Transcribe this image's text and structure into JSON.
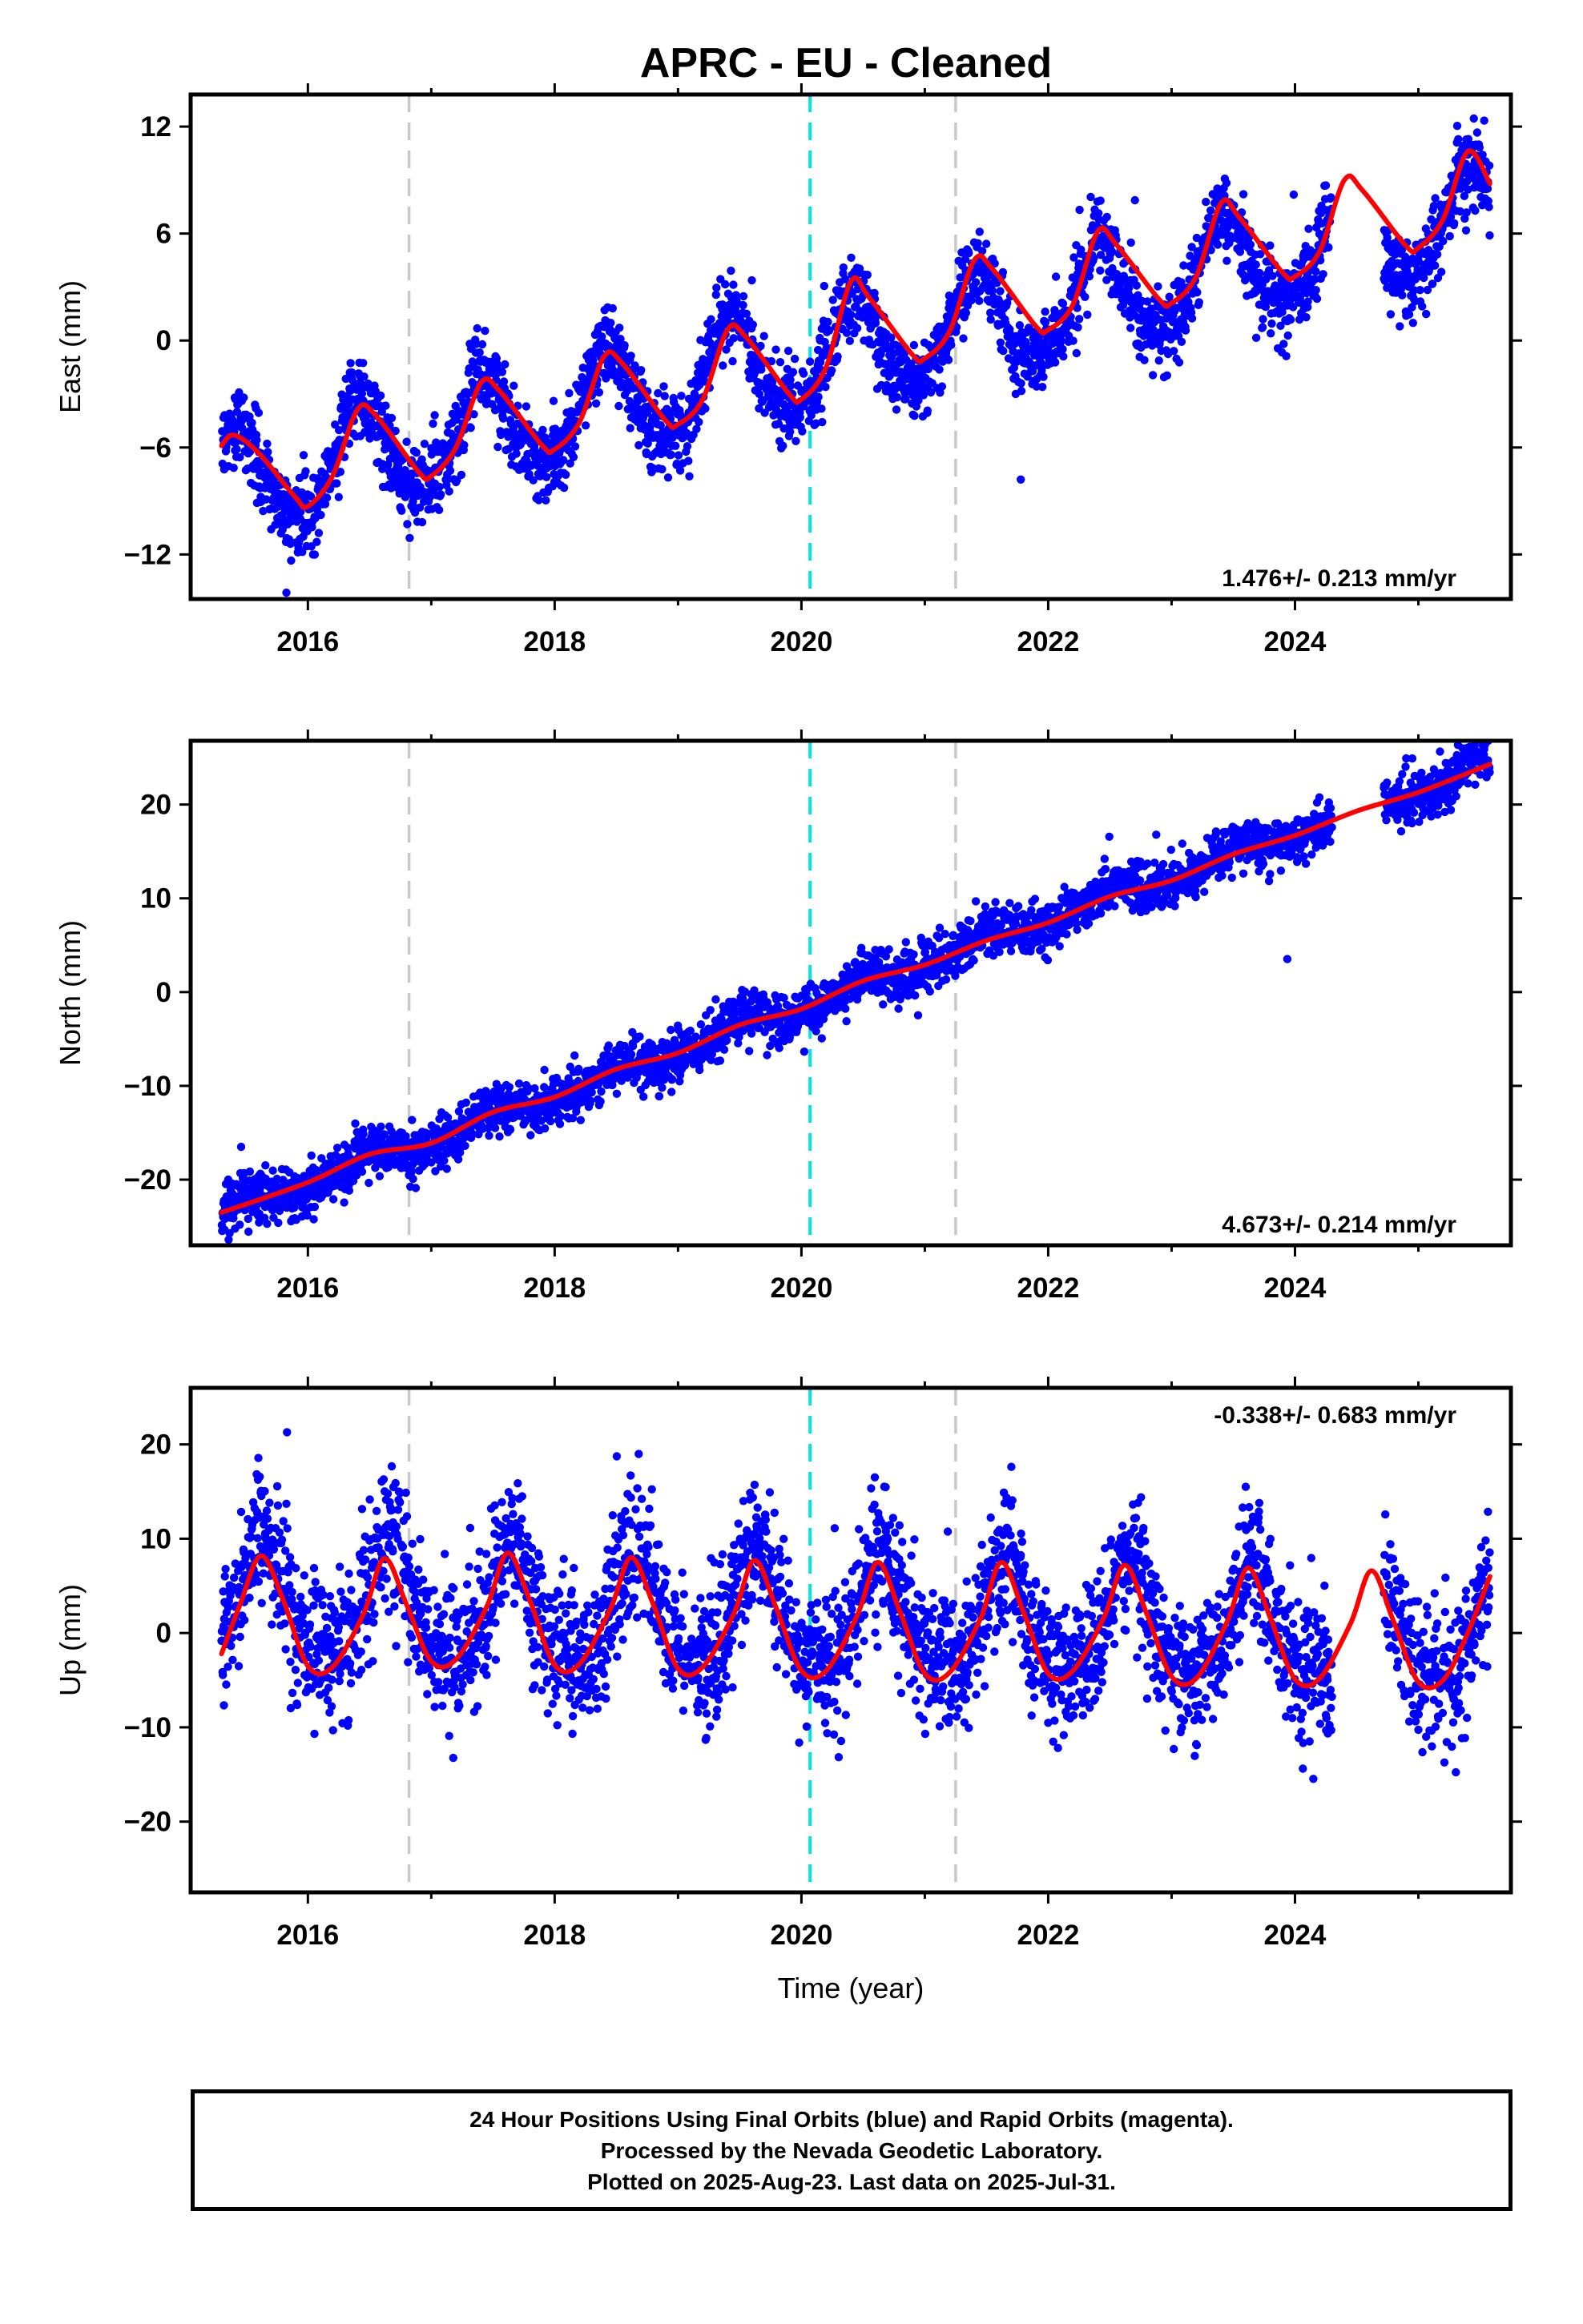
{
  "title": "APRC  - EU - Cleaned",
  "footer": {
    "line1": "24 Hour Positions Using Final Orbits (blue) and Rapid Orbits (magenta).",
    "line2": "Processed by the Nevada Geodetic Laboratory.",
    "line3": "Plotted on 2025-Aug-23. Last data on 2025-Jul-31."
  },
  "colors": {
    "data": "#0000ff",
    "model": "#ff0000",
    "equipment_change": "#c8c8c8",
    "earthquake": "#00e5e5"
  },
  "chart_data": [
    {
      "type": "scatter",
      "component": "east",
      "ylabel": "East (mm)",
      "xlim": [
        2015.05,
        2025.75
      ],
      "ylim": [
        -14.5,
        13.8
      ],
      "xticks": [
        2016,
        2018,
        2020,
        2022,
        2024
      ],
      "yticks": [
        -12,
        -6,
        0,
        6,
        12
      ],
      "rate_label": "1.476+/- 0.213 mm/yr",
      "rate_position": "bottom-right",
      "vertical_lines": [
        {
          "x": 2016.82,
          "kind": "equipment_change"
        },
        {
          "x": 2020.07,
          "kind": "earthquake"
        },
        {
          "x": 2021.25,
          "kind": "equipment_change"
        }
      ],
      "model": {
        "trend": 1.476,
        "intercept_2020": -1.2,
        "annual_amp": 2.8,
        "annual_peak": 2015.42,
        "semiannual_amp": 0.4
      },
      "scatter_sigma": 1.1,
      "data_start": 2015.3,
      "data_end": 2025.58,
      "data_gap": [
        2024.3,
        2024.72
      ],
      "model_points": [
        [
          2015.3,
          -5.9
        ],
        [
          2015.4,
          -5.3
        ],
        [
          2015.6,
          -6.3
        ],
        [
          2015.9,
          -8.8
        ],
        [
          2016.0,
          -9.3
        ],
        [
          2016.2,
          -7.6
        ],
        [
          2016.4,
          -3.9
        ],
        [
          2016.55,
          -4.2
        ],
        [
          2016.9,
          -7.4
        ],
        [
          2017.0,
          -7.6
        ],
        [
          2017.2,
          -6.0
        ],
        [
          2017.4,
          -2.4
        ],
        [
          2017.55,
          -2.8
        ],
        [
          2017.9,
          -5.9
        ],
        [
          2018.0,
          -6.1
        ],
        [
          2018.2,
          -4.6
        ],
        [
          2018.4,
          -0.9
        ],
        [
          2018.55,
          -1.3
        ],
        [
          2018.9,
          -4.5
        ],
        [
          2019.0,
          -4.7
        ],
        [
          2019.2,
          -3.3
        ],
        [
          2019.4,
          0.6
        ],
        [
          2019.55,
          0.2
        ],
        [
          2019.9,
          -3.0
        ],
        [
          2020.0,
          -3.3
        ],
        [
          2020.2,
          -1.5
        ],
        [
          2020.4,
          3.3
        ],
        [
          2020.55,
          2.4
        ],
        [
          2020.9,
          -0.8
        ],
        [
          2021.0,
          -1.0
        ],
        [
          2021.2,
          0.5
        ],
        [
          2021.4,
          4.5
        ],
        [
          2021.55,
          4.0
        ],
        [
          2021.9,
          0.8
        ],
        [
          2022.0,
          0.6
        ],
        [
          2022.2,
          2.0
        ],
        [
          2022.4,
          6.1
        ],
        [
          2022.55,
          5.4
        ],
        [
          2022.9,
          2.3
        ],
        [
          2023.0,
          2.1
        ],
        [
          2023.2,
          3.6
        ],
        [
          2023.4,
          7.7
        ],
        [
          2023.55,
          6.9
        ],
        [
          2023.9,
          3.8
        ],
        [
          2024.0,
          3.6
        ],
        [
          2024.2,
          5.0
        ],
        [
          2024.4,
          9.0
        ],
        [
          2024.55,
          8.4
        ],
        [
          2024.9,
          5.3
        ],
        [
          2025.0,
          5.2
        ],
        [
          2025.2,
          6.8
        ],
        [
          2025.4,
          10.6
        ],
        [
          2025.58,
          8.8
        ]
      ]
    },
    {
      "type": "scatter",
      "component": "north",
      "ylabel": "North (mm)",
      "xlim": [
        2015.05,
        2025.75
      ],
      "ylim": [
        -27,
        26.8
      ],
      "xticks": [
        2016,
        2018,
        2020,
        2022,
        2024
      ],
      "yticks": [
        -20,
        -10,
        0,
        10,
        20
      ],
      "rate_label": "4.673+/- 0.214 mm/yr",
      "rate_position": "bottom-right",
      "vertical_lines": [
        {
          "x": 2016.82,
          "kind": "equipment_change"
        },
        {
          "x": 2020.07,
          "kind": "earthquake"
        },
        {
          "x": 2021.25,
          "kind": "equipment_change"
        }
      ],
      "model": {
        "trend": 4.673,
        "intercept_2020": -1.6,
        "annual_amp": 0.9,
        "annual_peak": 2015.5,
        "semiannual_amp": 0.2
      },
      "scatter_sigma": 1.3,
      "data_start": 2015.3,
      "data_end": 2025.58,
      "data_gap": [
        2024.3,
        2024.72
      ],
      "model_points": [
        [
          2015.3,
          -23.5
        ],
        [
          2016.0,
          -20.3
        ],
        [
          2016.5,
          -17.3
        ],
        [
          2017.0,
          -16.1
        ],
        [
          2017.5,
          -12.8
        ],
        [
          2018.0,
          -11.2
        ],
        [
          2018.5,
          -8.2
        ],
        [
          2019.0,
          -6.5
        ],
        [
          2019.5,
          -3.5
        ],
        [
          2020.0,
          -1.8
        ],
        [
          2020.5,
          1.2
        ],
        [
          2021.0,
          2.9
        ],
        [
          2021.5,
          5.5
        ],
        [
          2022.0,
          7.4
        ],
        [
          2022.5,
          10.2
        ],
        [
          2023.0,
          11.9
        ],
        [
          2023.5,
          14.7
        ],
        [
          2024.0,
          16.7
        ],
        [
          2024.5,
          19.3
        ],
        [
          2025.0,
          21.3
        ],
        [
          2025.58,
          24.3
        ]
      ]
    },
    {
      "type": "scatter",
      "component": "up",
      "ylabel": "Up (mm)",
      "xlabel": "Time (year)",
      "xlim": [
        2015.05,
        2025.75
      ],
      "ylim": [
        -27.5,
        26
      ],
      "xticks": [
        2016,
        2018,
        2020,
        2022,
        2024
      ],
      "yticks": [
        -20,
        -10,
        0,
        10,
        20
      ],
      "rate_label": "-0.338+/- 0.683 mm/yr",
      "rate_position": "top-right",
      "vertical_lines": [
        {
          "x": 2016.82,
          "kind": "equipment_change"
        },
        {
          "x": 2020.07,
          "kind": "earthquake"
        },
        {
          "x": 2021.25,
          "kind": "equipment_change"
        }
      ],
      "model": {
        "trend": -0.338,
        "intercept_2020": 1.5,
        "annual_amp": 5.8,
        "annual_peak": 2015.65,
        "semiannual_amp": 1.3
      },
      "scatter_sigma": 3.6,
      "data_start": 2015.3,
      "data_end": 2025.58,
      "data_gap": [
        2024.3,
        2024.72
      ],
      "model_points": [
        [
          2015.3,
          -2.2
        ],
        [
          2015.45,
          3.0
        ],
        [
          2015.62,
          8.2
        ],
        [
          2015.8,
          3.5
        ],
        [
          2016.0,
          -3.5
        ],
        [
          2016.2,
          -3.6
        ],
        [
          2016.45,
          2.0
        ],
        [
          2016.62,
          7.9
        ],
        [
          2016.8,
          3.0
        ],
        [
          2017.0,
          -3.0
        ],
        [
          2017.2,
          -2.8
        ],
        [
          2017.45,
          2.8
        ],
        [
          2017.62,
          8.5
        ],
        [
          2017.8,
          3.4
        ],
        [
          2018.0,
          -3.4
        ],
        [
          2018.2,
          -3.3
        ],
        [
          2018.45,
          2.5
        ],
        [
          2018.62,
          8.0
        ],
        [
          2018.8,
          3.0
        ],
        [
          2019.0,
          -3.8
        ],
        [
          2019.2,
          -3.6
        ],
        [
          2019.45,
          2.0
        ],
        [
          2019.62,
          7.7
        ],
        [
          2019.8,
          2.5
        ],
        [
          2020.0,
          -4.0
        ],
        [
          2020.2,
          -4.0
        ],
        [
          2020.45,
          1.8
        ],
        [
          2020.62,
          7.5
        ],
        [
          2020.8,
          2.2
        ],
        [
          2021.0,
          -4.3
        ],
        [
          2021.2,
          -4.2
        ],
        [
          2021.45,
          1.5
        ],
        [
          2021.62,
          7.5
        ],
        [
          2021.8,
          2.2
        ],
        [
          2022.0,
          -4.3
        ],
        [
          2022.2,
          -4.0
        ],
        [
          2022.45,
          1.6
        ],
        [
          2022.62,
          7.2
        ],
        [
          2022.8,
          2.0
        ],
        [
          2023.0,
          -4.6
        ],
        [
          2023.2,
          -4.8
        ],
        [
          2023.45,
          1.2
        ],
        [
          2023.62,
          6.9
        ],
        [
          2023.8,
          1.6
        ],
        [
          2024.0,
          -4.9
        ],
        [
          2024.2,
          -4.8
        ],
        [
          2024.45,
          1.0
        ],
        [
          2024.62,
          6.6
        ],
        [
          2024.8,
          1.2
        ],
        [
          2025.0,
          -5.2
        ],
        [
          2025.2,
          -5.0
        ],
        [
          2025.4,
          0.0
        ],
        [
          2025.58,
          6.0
        ]
      ]
    }
  ]
}
